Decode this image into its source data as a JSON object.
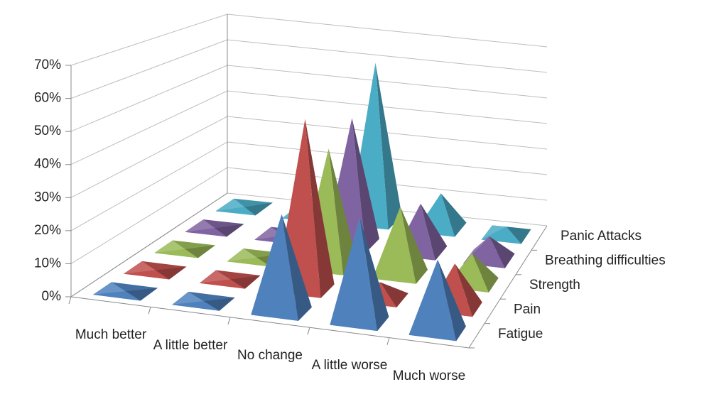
{
  "chart_data": {
    "type": "pyramid3d",
    "categories": [
      "Much better",
      "A little better",
      "No change",
      "A little worse",
      "Much worse"
    ],
    "series": [
      {
        "name": "Fatigue",
        "color": "#4f81bd",
        "values": [
          0,
          0,
          30,
          32,
          22
        ]
      },
      {
        "name": "Pain",
        "color": "#c0504d",
        "values": [
          0,
          0,
          55,
          5,
          14
        ]
      },
      {
        "name": "Strength",
        "color": "#9bbb59",
        "values": [
          0,
          0,
          40,
          23,
          10
        ]
      },
      {
        "name": "Breathing difficulties",
        "color": "#8064a2",
        "values": [
          0,
          0,
          45,
          17,
          8
        ]
      },
      {
        "name": "Panic Attacks",
        "color": "#4bacc6",
        "values": [
          0,
          0,
          60,
          13,
          3
        ]
      }
    ],
    "ylim": [
      0,
      70
    ],
    "yticks": [
      {
        "value": 0,
        "label": "0%"
      },
      {
        "value": 10,
        "label": "10%"
      },
      {
        "value": 20,
        "label": "20%"
      },
      {
        "value": 30,
        "label": "30%"
      },
      {
        "value": 40,
        "label": "40%"
      },
      {
        "value": 50,
        "label": "50%"
      },
      {
        "value": 60,
        "label": "60%"
      },
      {
        "value": 70,
        "label": "70%"
      }
    ],
    "grid": true
  }
}
